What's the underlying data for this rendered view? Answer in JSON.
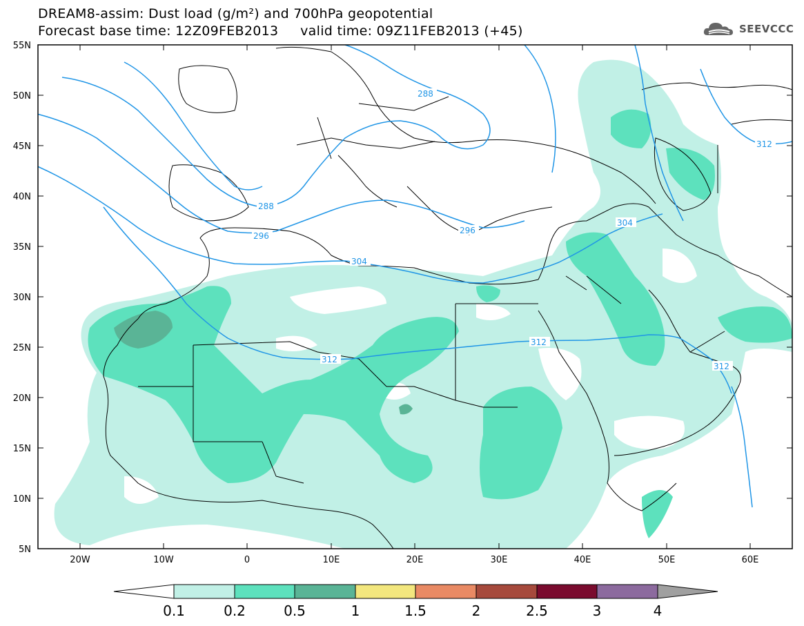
{
  "title": {
    "line1": "DREAM8-assim: Dust load (g/m²) and 700hPa geopotential",
    "line2": "Forecast base time: 12Z09FEB2013     valid time: 09Z11FEB2013 (+45)"
  },
  "logo": {
    "text": "SEEVCCC",
    "icon": "cloud-logo-icon"
  },
  "axes": {
    "lat_labels": [
      "55N",
      "50N",
      "45N",
      "40N",
      "35N",
      "30N",
      "25N",
      "20N",
      "15N",
      "10N",
      "5N"
    ],
    "lon_labels": [
      "20W",
      "10W",
      "0",
      "10E",
      "20E",
      "30E",
      "40E",
      "50E",
      "60E"
    ],
    "lat_range": [
      5,
      55
    ],
    "lon_range": [
      -25,
      65
    ]
  },
  "isolines": [
    {
      "label": "288"
    },
    {
      "label": "288"
    },
    {
      "label": "296"
    },
    {
      "label": "296"
    },
    {
      "label": "304"
    },
    {
      "label": "304"
    },
    {
      "label": "312"
    },
    {
      "label": "312"
    },
    {
      "label": "312"
    },
    {
      "label": "312"
    }
  ],
  "colorbar": {
    "labels": [
      "0.1",
      "0.2",
      "0.5",
      "1",
      "1.5",
      "2",
      "2.5",
      "3",
      "4"
    ],
    "colors": [
      "#ffffff",
      "#c1f0e6",
      "#5de1bd",
      "#5ab496",
      "#f3e77e",
      "#e98a64",
      "#a64a3c",
      "#7a0b2e",
      "#8c6a9e",
      "#a0a0a0"
    ]
  },
  "dust_colors": {
    "low": "#c1f0e6",
    "mid": "#5de1bd",
    "high": "#5ab496"
  },
  "contour_color": "#1f95e6"
}
